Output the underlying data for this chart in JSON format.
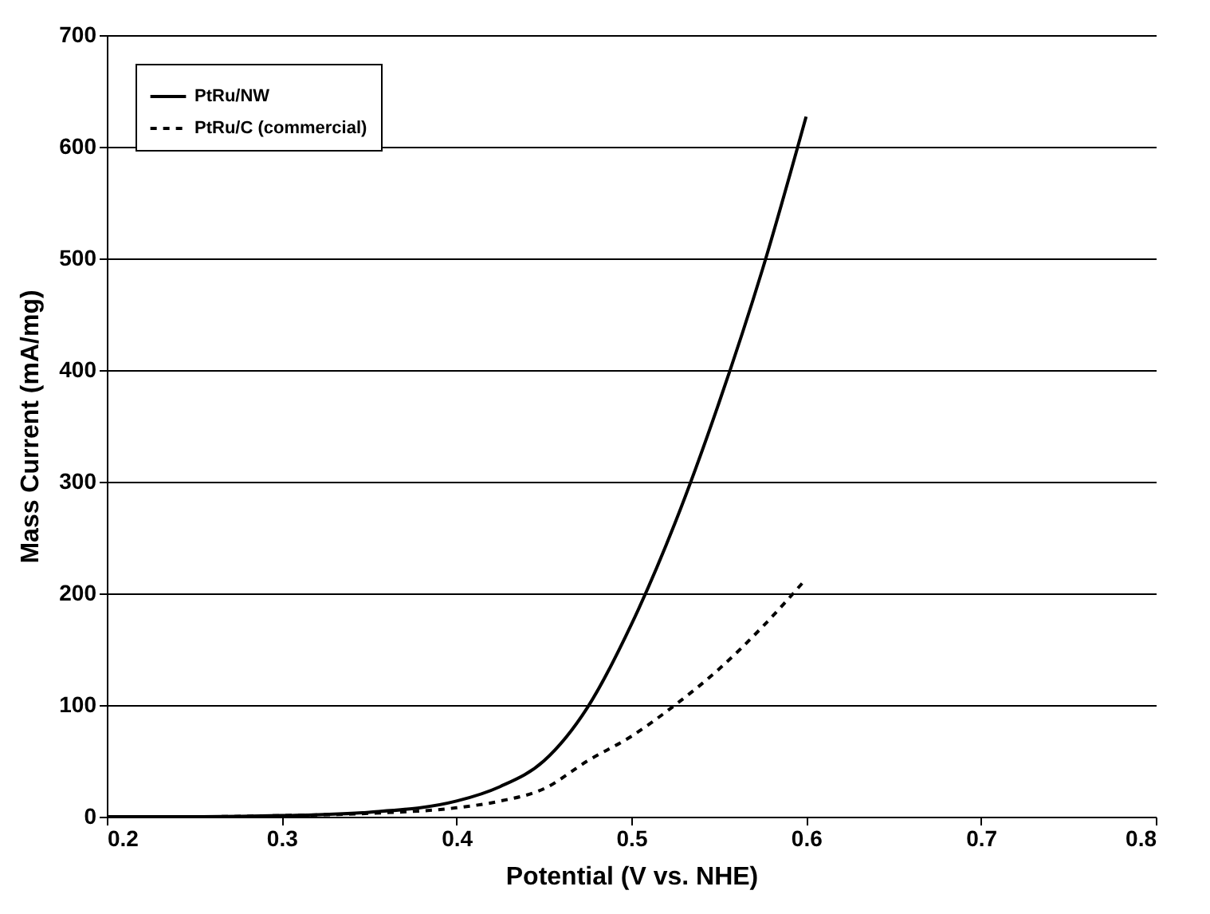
{
  "chart_data": {
    "type": "line",
    "xlabel": "Potential (V vs. NHE)",
    "ylabel": "Mass Current (mA/mg)",
    "x": [
      0.2,
      0.25,
      0.3,
      0.35,
      0.4,
      0.425,
      0.45,
      0.475,
      0.5,
      0.525,
      0.55,
      0.575,
      0.6
    ],
    "series": [
      {
        "name": "PtRu/NW",
        "color": "#000000",
        "line_style": "solid",
        "values": [
          0,
          0,
          1,
          4,
          14,
          27,
          50,
          98,
          172,
          263,
          370,
          490,
          627
        ]
      },
      {
        "name": "PtRu/C (commercial)",
        "color": "#000000",
        "line_style": "dashed",
        "values": [
          0,
          0,
          1,
          3,
          8,
          14,
          25,
          50,
          72,
          100,
          132,
          170,
          213
        ]
      }
    ],
    "xlim": [
      0.2,
      0.8
    ],
    "xticks": [
      0.2,
      0.3,
      0.4,
      0.5,
      0.6,
      0.7,
      0.8
    ],
    "ylim": [
      0,
      700
    ],
    "yticks": [
      0,
      100,
      200,
      300,
      400,
      500,
      600,
      700
    ],
    "grid": "y",
    "legend": "top left",
    "marker": "none"
  }
}
